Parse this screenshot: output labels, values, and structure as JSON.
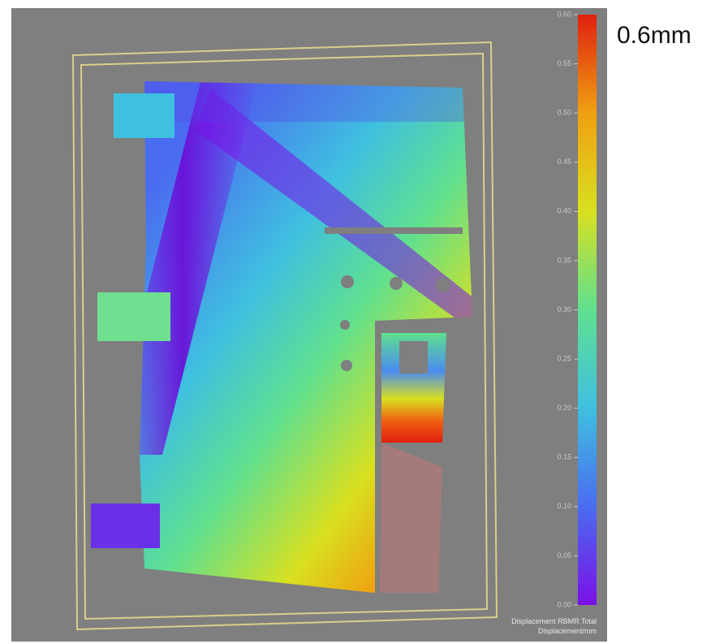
{
  "chart_data": {
    "type": "heatmap",
    "annotation": "0.6mm",
    "colorbar_label": [
      "Displacement RBMR Total",
      "Displacement/mm"
    ],
    "clim": [
      0,
      0.6
    ],
    "colormap": [
      "#7a10e8",
      "#4a6cf0",
      "#3fc0e0",
      "#5fe090",
      "#d8e020",
      "#f0a010",
      "#e02010"
    ],
    "cticks": [
      {
        "value": 0,
        "label": "0.00"
      },
      0.05,
      {
        "value": 0.1,
        "label": "0.10"
      },
      0.15,
      {
        "value": 0.2,
        "label": "0.20"
      },
      0.25,
      {
        "value": 0.3,
        "label": "0.30"
      },
      0.35,
      {
        "value": 0.4,
        "label": "0.40"
      },
      0.45,
      {
        "value": 0.5,
        "label": "0.50"
      },
      0.55,
      {
        "value": 0.6,
        "label": "0.60"
      }
    ]
  }
}
